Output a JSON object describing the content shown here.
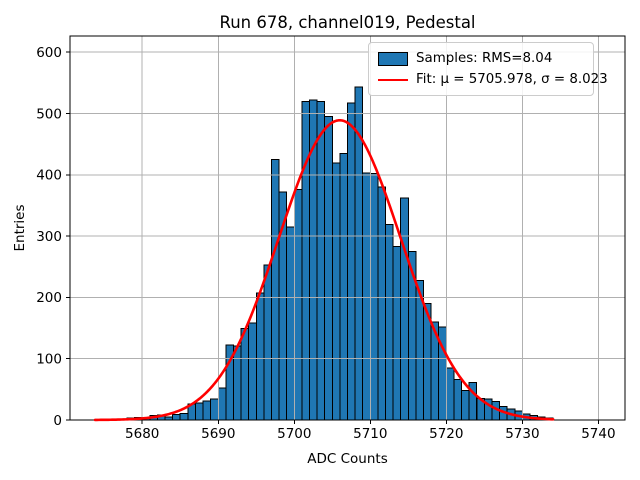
{
  "window": {
    "description": "matplotlib figure rendering a pedestal histogram with gaussian fit"
  },
  "colors": {
    "bar_fill": "#1f77b4",
    "bar_edge": "#000000",
    "fit_line": "#ff0000",
    "grid": "#b0b0b0",
    "spine": "#000000",
    "legend_border": "#cccccc",
    "background": "#ffffff",
    "text": "#000000"
  },
  "chart_data": {
    "type": "bar",
    "subtype": "histogram",
    "title": "Run 678, channel019, Pedestal",
    "xlabel": "ADC Counts",
    "ylabel": "Entries",
    "bin_start": 5674,
    "bin_width": 1,
    "values": [
      1,
      1,
      2,
      2,
      3,
      4,
      4,
      7,
      8,
      5,
      9,
      11,
      26,
      28,
      31,
      34,
      52,
      122,
      121,
      149,
      158,
      207,
      253,
      425,
      372,
      315,
      376,
      520,
      522,
      520,
      495,
      419,
      435,
      517,
      543,
      403,
      402,
      380,
      319,
      283,
      362,
      275,
      228,
      190,
      160,
      152,
      85,
      66,
      48,
      61,
      35,
      34,
      30,
      22,
      18,
      15,
      10,
      7,
      5,
      3
    ],
    "xlim": [
      5670.5,
      5743.5
    ],
    "ylim": [
      0,
      626.5
    ],
    "xticks": [
      5680,
      5690,
      5700,
      5710,
      5720,
      5730,
      5740
    ],
    "yticks": [
      0,
      100,
      200,
      300,
      400,
      500,
      600
    ],
    "grid": true,
    "legend_position": "upper right",
    "legend": [
      {
        "label": "Samples: RMS=8.04",
        "marker": "patch"
      },
      {
        "label": "Fit: μ = 5705.978, σ = 8.023",
        "marker": "line"
      }
    ],
    "fit": {
      "shape": "gaussian",
      "mu": 5705.978,
      "sigma": 8.023,
      "amplitude": 489,
      "x_start": 5673.8,
      "x_end": 5734.2
    }
  }
}
